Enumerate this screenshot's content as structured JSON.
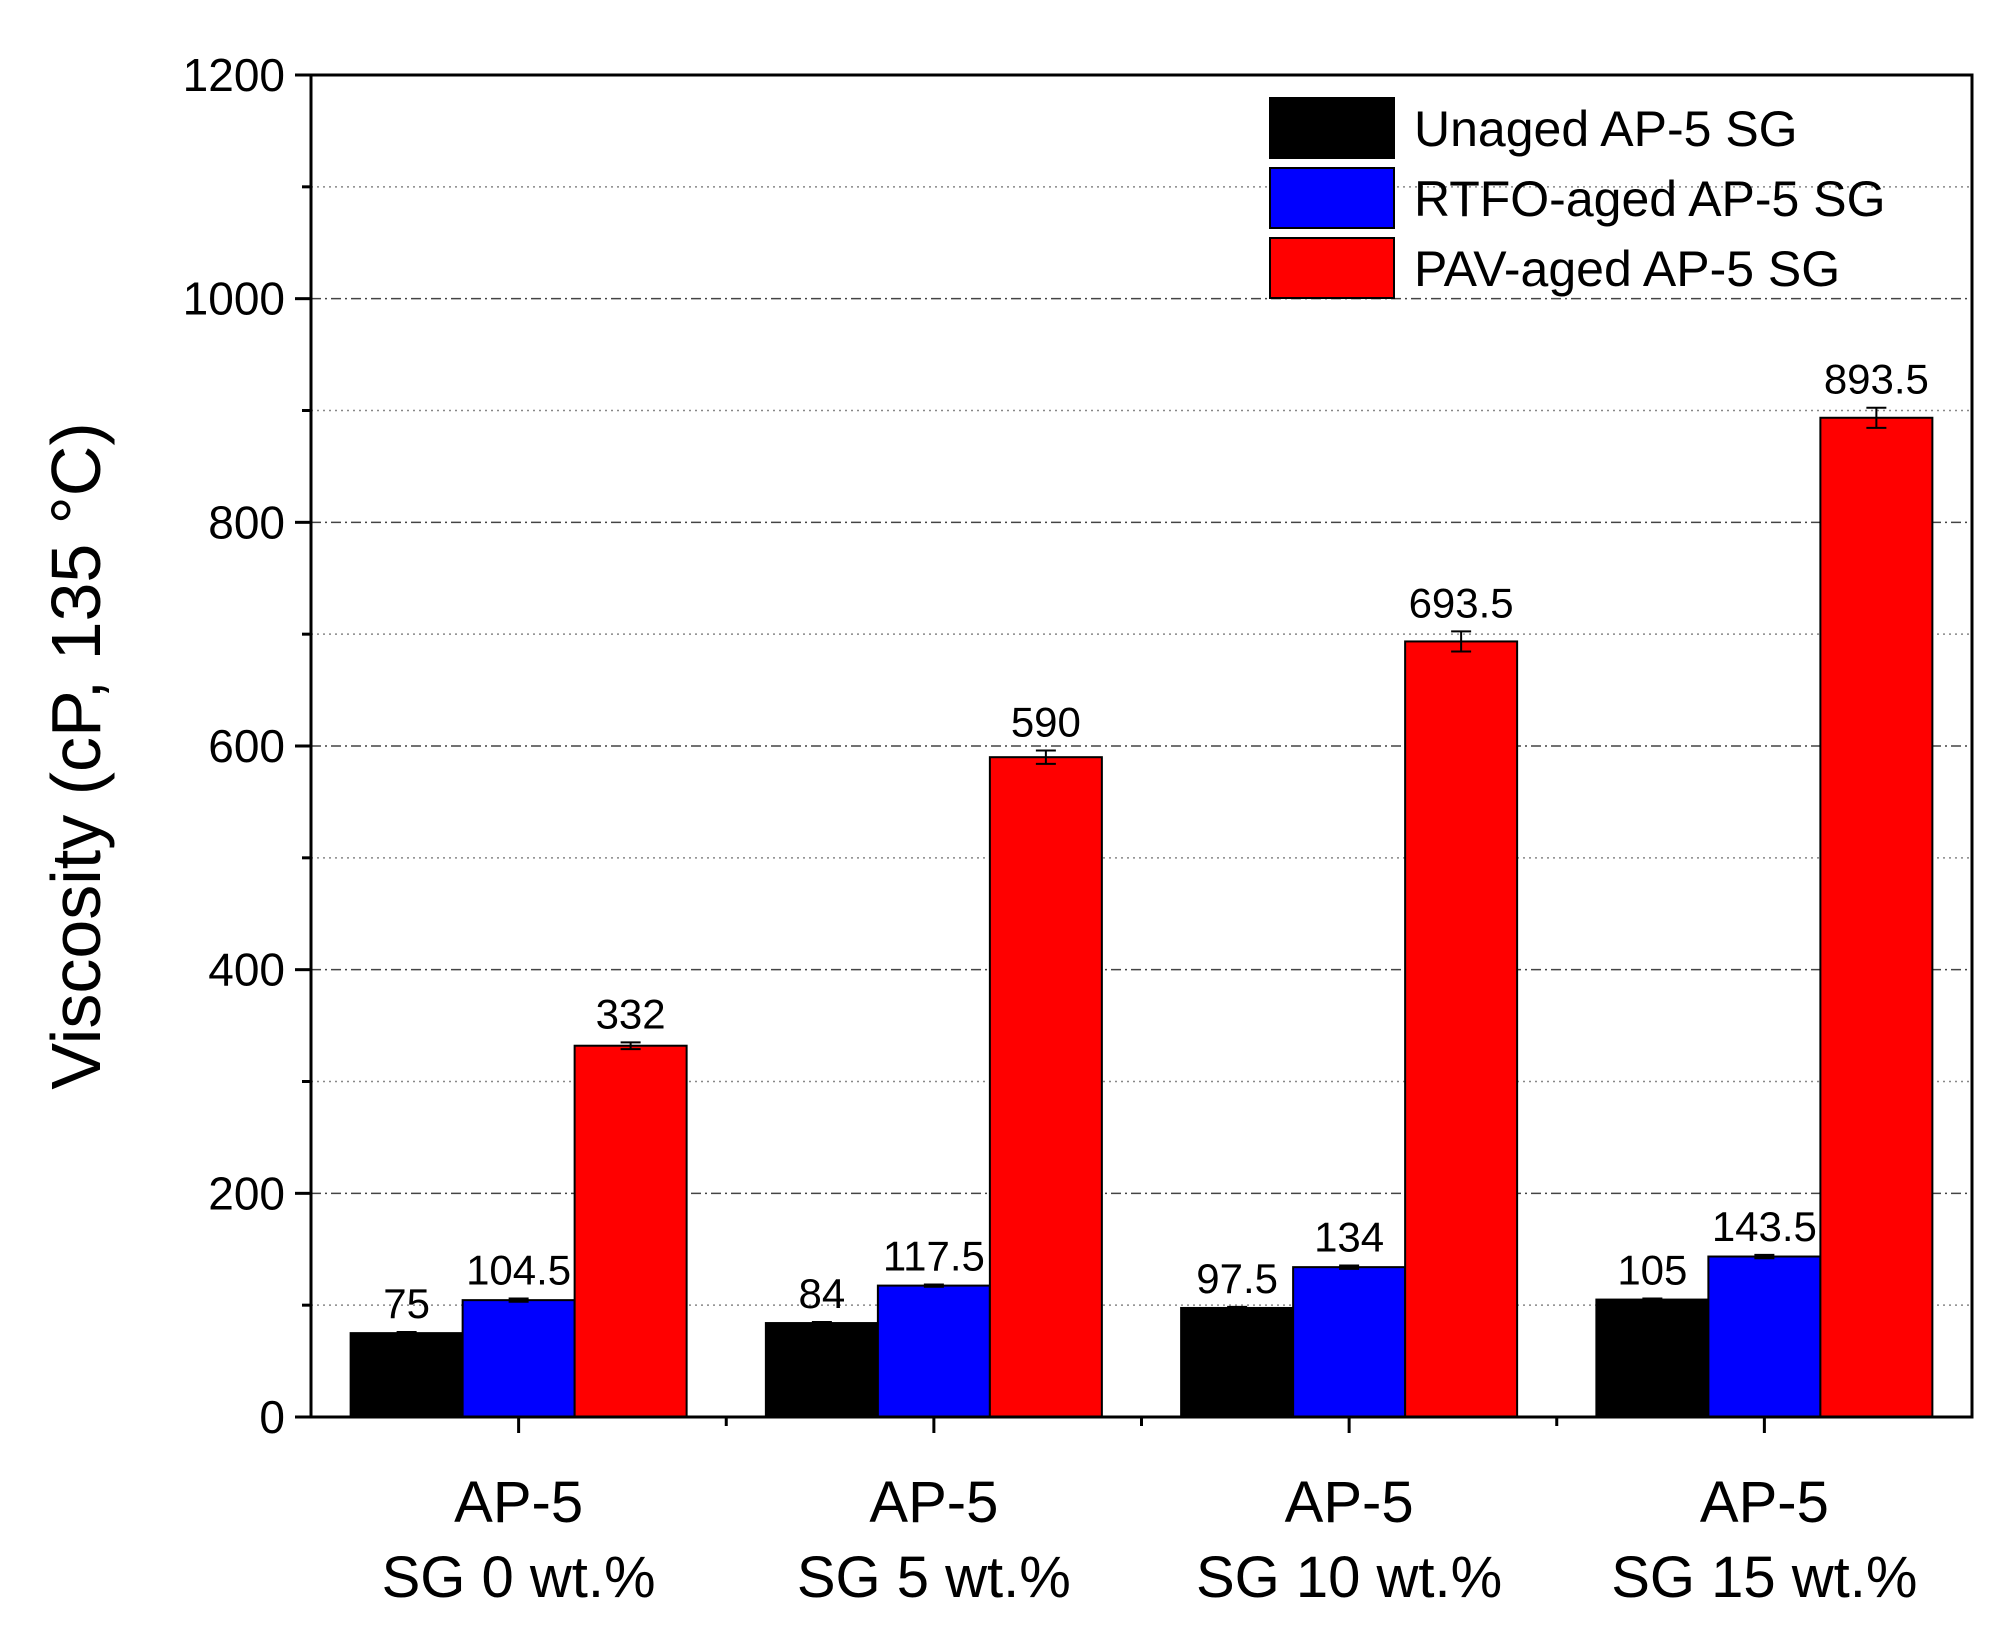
{
  "chart_data": {
    "type": "bar",
    "title": "",
    "xlabel": "",
    "ylabel": "Viscosity (cP, 135 °C)",
    "ylim": [
      0,
      1200
    ],
    "yticks": [
      "0",
      "200",
      "400",
      "600",
      "800",
      "1000",
      "1200"
    ],
    "grid": true,
    "legend_position": "top-right",
    "categories": [
      {
        "line1": "AP-5",
        "line2": "SG 0 wt.%"
      },
      {
        "line1": "AP-5",
        "line2": "SG 5 wt.%"
      },
      {
        "line1": "AP-5",
        "line2": "SG 10 wt.%"
      },
      {
        "line1": "AP-5",
        "line2": "SG 15 wt.%"
      }
    ],
    "series": [
      {
        "name": "Unaged AP-5 SG",
        "color": "#000000",
        "values": [
          75,
          84,
          97.5,
          105
        ],
        "labels": [
          "75",
          "84",
          "97.5",
          "105"
        ],
        "errors": [
          1,
          1,
          1,
          1
        ]
      },
      {
        "name": "RTFO-aged AP-5 SG",
        "color": "#0000ff",
        "values": [
          104.5,
          117.5,
          134,
          143.5
        ],
        "labels": [
          "104.5",
          "117.5",
          "134",
          "143.5"
        ],
        "errors": [
          1.5,
          1,
          1.5,
          1.5
        ]
      },
      {
        "name": "PAV-aged AP-5 SG",
        "color": "#ff0000",
        "values": [
          332,
          590,
          693.5,
          893.5
        ],
        "labels": [
          "332",
          "590",
          "693.5",
          "893.5"
        ],
        "errors": [
          3,
          6,
          9,
          9
        ]
      }
    ]
  }
}
